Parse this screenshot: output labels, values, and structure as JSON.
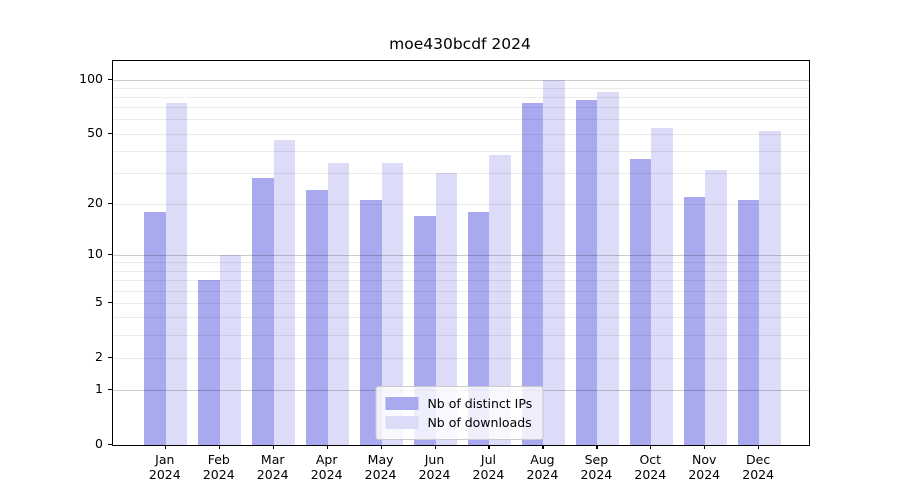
{
  "title": "moe430bcdf 2024",
  "chart_data": {
    "type": "bar",
    "title": "moe430bcdf 2024",
    "categories": [
      "Jan",
      "Feb",
      "Mar",
      "Apr",
      "May",
      "Jun",
      "Jul",
      "Aug",
      "Sep",
      "Oct",
      "Nov",
      "Dec"
    ],
    "year_label": "2024",
    "series": [
      {
        "name": "Nb of distinct IPs",
        "color": "#a9a9f0",
        "values": [
          18,
          7,
          28,
          24,
          21,
          17,
          18,
          74,
          77,
          36,
          22,
          21
        ]
      },
      {
        "name": "Nb of downloads",
        "color": "#dcdcf9",
        "values": [
          74,
          10,
          46,
          34,
          34,
          30,
          38,
          100,
          85,
          54,
          31,
          52
        ]
      }
    ],
    "yscale": "log1p",
    "yticks": [
      0,
      1,
      2,
      5,
      10,
      20,
      50,
      100
    ],
    "ytick_labels": [
      "0",
      "1",
      "2",
      "5",
      "10",
      "20",
      "50",
      "100"
    ],
    "ylim": [
      0,
      122
    ],
    "grid": {
      "major": [
        1,
        10,
        100
      ],
      "minor": [
        2,
        3,
        4,
        5,
        6,
        7,
        8,
        9,
        20,
        30,
        40,
        50,
        60,
        70,
        80,
        90
      ],
      "major_color": "rgba(0,0,0,0.20)",
      "minor_color": "rgba(0,0,0,0.075)"
    },
    "legend": {
      "position": "lower center",
      "items": [
        "Nb of distinct IPs",
        "Nb of downloads"
      ]
    }
  }
}
